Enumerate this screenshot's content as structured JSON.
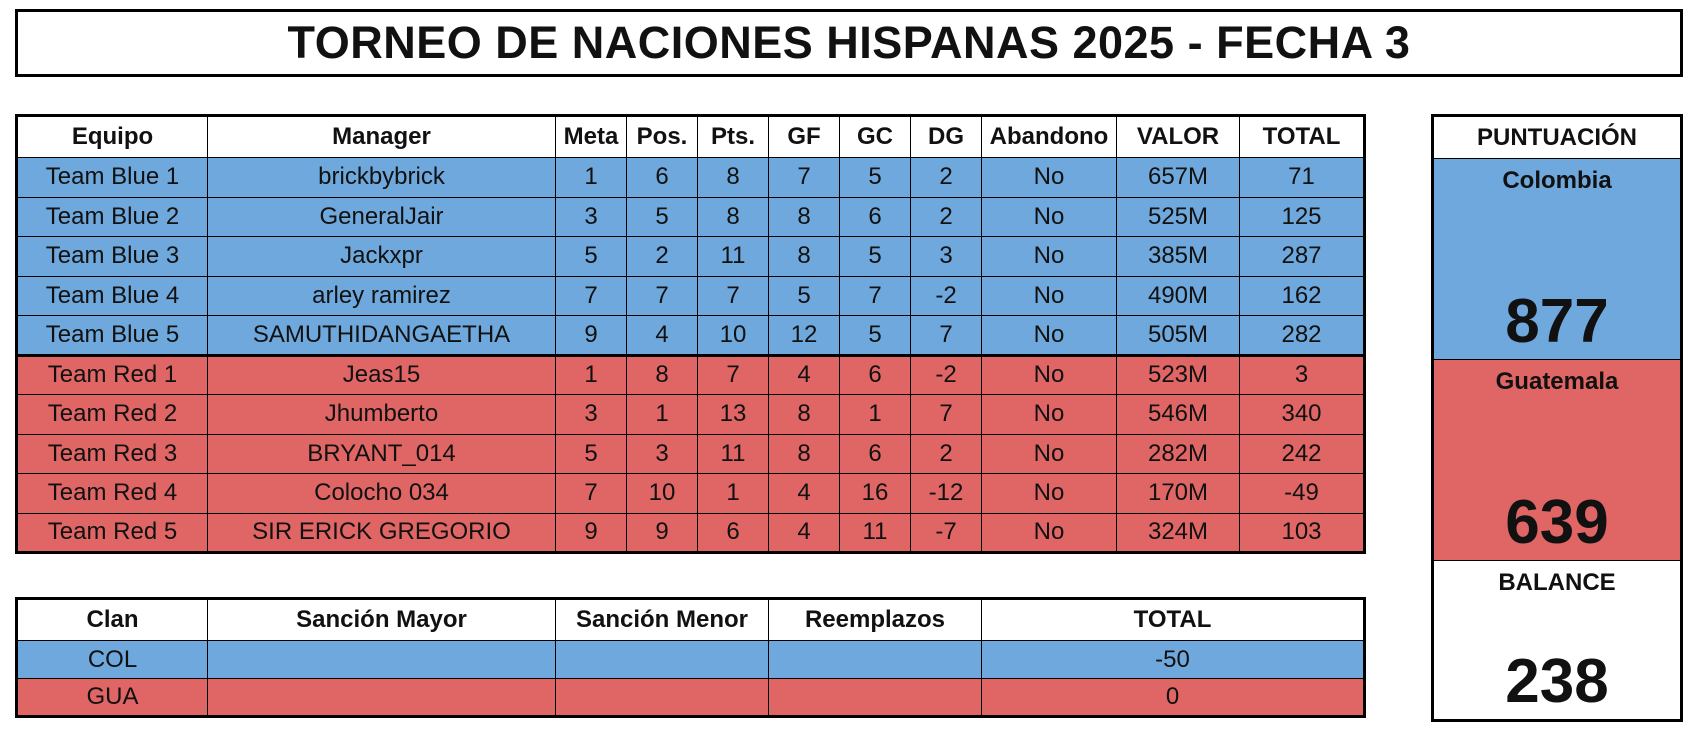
{
  "title": "TORNEO DE NACIONES HISPANAS 2025 - FECHA 3",
  "colors": {
    "blue": "#6fa8dc",
    "red": "#e06666"
  },
  "main_table": {
    "headers": [
      "Equipo",
      "Manager",
      "Meta",
      "Pos.",
      "Pts.",
      "GF",
      "GC",
      "DG",
      "Abandono",
      "VALOR",
      "TOTAL"
    ],
    "rows": [
      {
        "team": "blue",
        "cells": [
          "Team Blue 1",
          "brickbybrick",
          "1",
          "6",
          "8",
          "7",
          "5",
          "2",
          "No",
          "657M",
          "71"
        ]
      },
      {
        "team": "blue",
        "cells": [
          "Team Blue 2",
          "GeneralJair",
          "3",
          "5",
          "8",
          "8",
          "6",
          "2",
          "No",
          "525M",
          "125"
        ]
      },
      {
        "team": "blue",
        "cells": [
          "Team Blue 3",
          "Jackxpr",
          "5",
          "2",
          "11",
          "8",
          "5",
          "3",
          "No",
          "385M",
          "287"
        ]
      },
      {
        "team": "blue",
        "cells": [
          "Team Blue 4",
          "arley ramirez",
          "7",
          "7",
          "7",
          "5",
          "7",
          "-2",
          "No",
          "490M",
          "162"
        ]
      },
      {
        "team": "blue",
        "cells": [
          "Team Blue 5",
          "SAMUTHIDANGAETHA",
          "9",
          "4",
          "10",
          "12",
          "5",
          "7",
          "No",
          "505M",
          "282"
        ]
      },
      {
        "team": "red",
        "cells": [
          "Team Red 1",
          "Jeas15",
          "1",
          "8",
          "7",
          "4",
          "6",
          "-2",
          "No",
          "523M",
          "3"
        ]
      },
      {
        "team": "red",
        "cells": [
          "Team Red 2",
          "Jhumberto",
          "3",
          "1",
          "13",
          "8",
          "1",
          "7",
          "No",
          "546M",
          "340"
        ]
      },
      {
        "team": "red",
        "cells": [
          "Team Red 3",
          "BRYANT_014",
          "5",
          "3",
          "11",
          "8",
          "6",
          "2",
          "No",
          "282M",
          "242"
        ]
      },
      {
        "team": "red",
        "cells": [
          "Team Red 4",
          "Colocho 034",
          "7",
          "10",
          "1",
          "4",
          "16",
          "-12",
          "No",
          "170M",
          "-49"
        ]
      },
      {
        "team": "red",
        "cells": [
          "Team Red 5",
          "SIR ERICK GREGORIO",
          "9",
          "9",
          "6",
          "4",
          "11",
          "-7",
          "No",
          "324M",
          "103"
        ]
      }
    ]
  },
  "sanction_table": {
    "headers": [
      "Clan",
      "Sanción Mayor",
      "Sanción Menor",
      "Reemplazos",
      "TOTAL"
    ],
    "rows": [
      {
        "team": "blue",
        "cells": [
          "COL",
          "",
          "",
          "",
          "-50"
        ]
      },
      {
        "team": "red",
        "cells": [
          "GUA",
          "",
          "",
          "",
          "0"
        ]
      }
    ]
  },
  "score_panel": {
    "header": "PUNTUACIÓN",
    "blue_label": "Colombia",
    "blue_value": "877",
    "red_label": "Guatemala",
    "red_value": "639",
    "balance_label": "BALANCE",
    "balance_value": "238"
  }
}
